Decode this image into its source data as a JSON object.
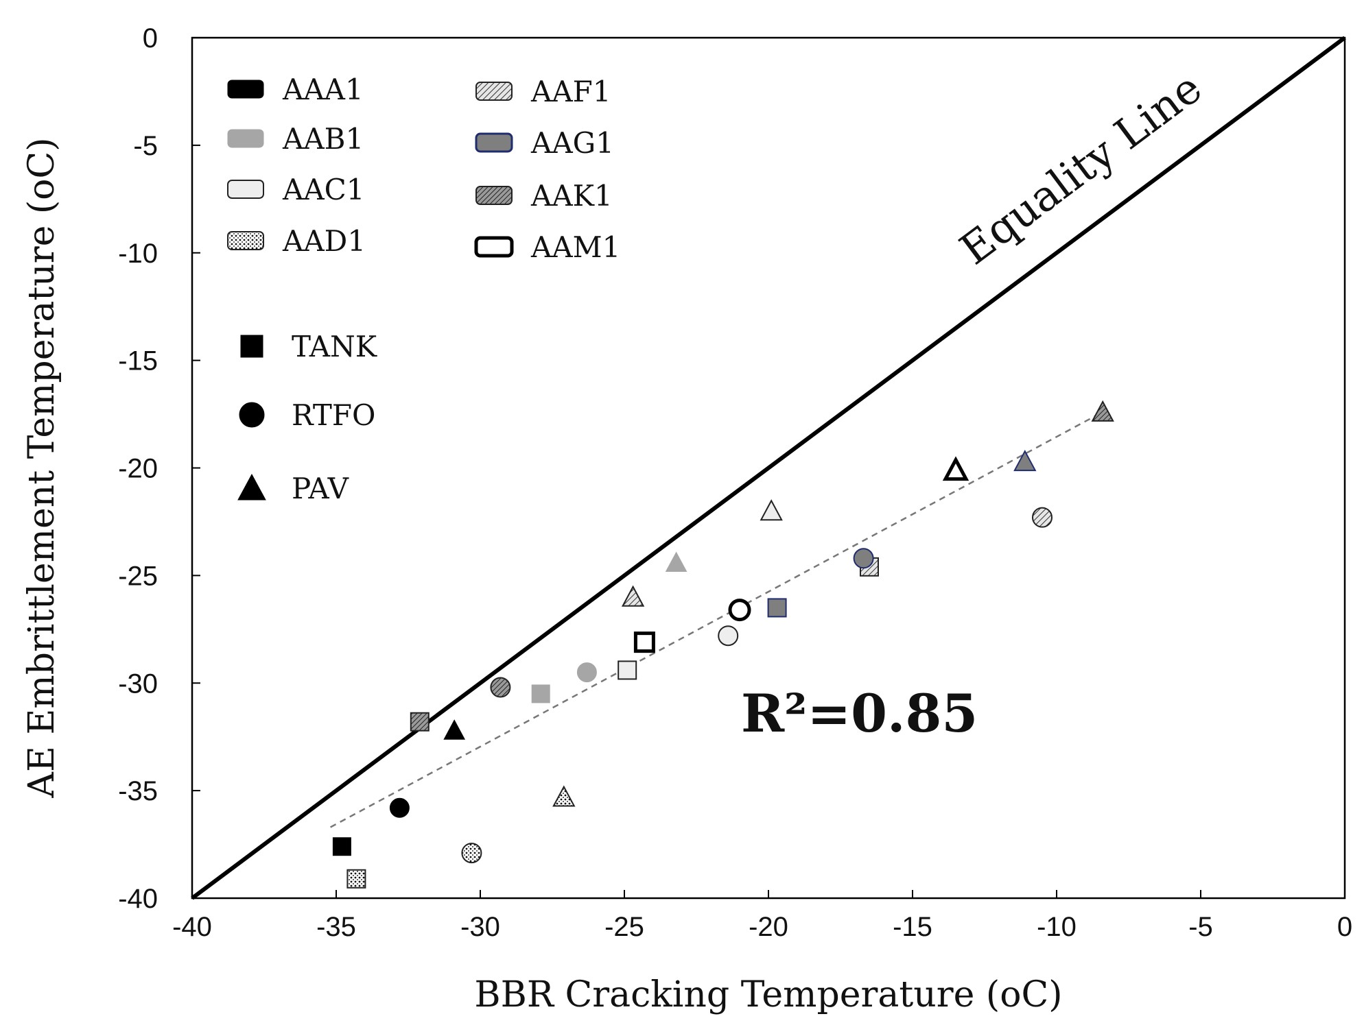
{
  "chart_data": {
    "type": "scatter",
    "xlabel": "BBR Cracking Temperature (oC)",
    "ylabel": "AE Embrittlement Temperature (oC)",
    "xlim": [
      -40,
      0
    ],
    "ylim": [
      -40,
      0
    ],
    "xticks": [
      "-40",
      "-35",
      "-30",
      "-25",
      "-20",
      "-15",
      "-10",
      "-5",
      "0"
    ],
    "yticks": [
      "0",
      "-5",
      "-10",
      "-15",
      "-20",
      "-25",
      "-30",
      "-35",
      "-40"
    ],
    "grid": false,
    "equality_label": "Equality Line",
    "r_squared_label": "R²=0.85",
    "trendline": {
      "x": [
        -35.2,
        -8.4
      ],
      "y": [
        -36.7,
        -17.4
      ]
    },
    "materials": [
      {
        "name": "AAA1",
        "fill": "#000000",
        "stroke": "#000000"
      },
      {
        "name": "AAB1",
        "fill": "#a6a6a6",
        "stroke": "#a6a6a6"
      },
      {
        "name": "AAC1",
        "fill": "#eeeeee",
        "stroke": "#222222"
      },
      {
        "name": "AAD1",
        "fill": "dots",
        "stroke": "#222222"
      },
      {
        "name": "AAF1",
        "fill": "hatch",
        "stroke": "#222222"
      },
      {
        "name": "AAG1",
        "fill": "#7f7f7f",
        "stroke": "#1f2d6e"
      },
      {
        "name": "AAK1",
        "fill": "darkhatch",
        "stroke": "#222222"
      },
      {
        "name": "AAM1",
        "fill": "#ffffff",
        "stroke": "#000000"
      }
    ],
    "aging_states": [
      {
        "name": "TANK",
        "marker": "square"
      },
      {
        "name": "RTFO",
        "marker": "circle"
      },
      {
        "name": "PAV",
        "marker": "triangle"
      }
    ],
    "points": [
      {
        "material": "AAA1",
        "state": "TANK",
        "x": -34.8,
        "y": -37.6
      },
      {
        "material": "AAA1",
        "state": "RTFO",
        "x": -32.8,
        "y": -35.8
      },
      {
        "material": "AAA1",
        "state": "PAV",
        "x": -30.9,
        "y": -32.2
      },
      {
        "material": "AAB1",
        "state": "TANK",
        "x": -27.9,
        "y": -30.5
      },
      {
        "material": "AAB1",
        "state": "RTFO",
        "x": -26.3,
        "y": -29.5
      },
      {
        "material": "AAB1",
        "state": "PAV",
        "x": -23.2,
        "y": -24.4
      },
      {
        "material": "AAC1",
        "state": "TANK",
        "x": -24.9,
        "y": -29.4
      },
      {
        "material": "AAC1",
        "state": "RTFO",
        "x": -21.4,
        "y": -27.8
      },
      {
        "material": "AAC1",
        "state": "PAV",
        "x": -19.9,
        "y": -22.0
      },
      {
        "material": "AAD1",
        "state": "TANK",
        "x": -34.3,
        "y": -39.1
      },
      {
        "material": "AAD1",
        "state": "RTFO",
        "x": -30.3,
        "y": -37.9
      },
      {
        "material": "AAD1",
        "state": "PAV",
        "x": -27.1,
        "y": -35.3
      },
      {
        "material": "AAF1",
        "state": "TANK",
        "x": -16.5,
        "y": -24.6
      },
      {
        "material": "AAF1",
        "state": "RTFO",
        "x": -10.5,
        "y": -22.3
      },
      {
        "material": "AAF1",
        "state": "PAV",
        "x": -24.7,
        "y": -26.0
      },
      {
        "material": "AAG1",
        "state": "TANK",
        "x": -19.7,
        "y": -26.5
      },
      {
        "material": "AAG1",
        "state": "RTFO",
        "x": -16.7,
        "y": -24.2
      },
      {
        "material": "AAG1",
        "state": "PAV",
        "x": -11.1,
        "y": -19.7
      },
      {
        "material": "AAK1",
        "state": "TANK",
        "x": -32.1,
        "y": -31.8
      },
      {
        "material": "AAK1",
        "state": "RTFO",
        "x": -29.3,
        "y": -30.2
      },
      {
        "material": "AAK1",
        "state": "PAV",
        "x": -8.4,
        "y": -17.4
      },
      {
        "material": "AAM1",
        "state": "TANK",
        "x": -24.3,
        "y": -28.1
      },
      {
        "material": "AAM1",
        "state": "RTFO",
        "x": -21.0,
        "y": -26.6
      },
      {
        "material": "AAM1",
        "state": "PAV",
        "x": -13.5,
        "y": -20.1
      }
    ]
  }
}
